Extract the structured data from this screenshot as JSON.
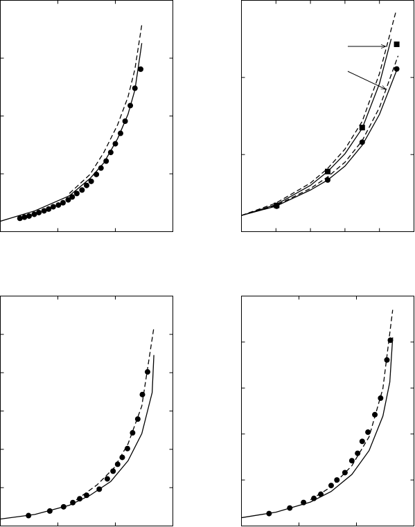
{
  "chart_data": [
    {
      "type": "line",
      "xlim": [
        0,
        3
      ],
      "ylim": [
        0,
        4
      ],
      "xticks": [
        1,
        2
      ],
      "yticks": [
        1,
        2,
        3
      ],
      "grid": false,
      "series": [
        {
          "style": "solid",
          "color": "#000000",
          "x": [
            0,
            0.6,
            1.2,
            1.56,
            1.8,
            2.04,
            2.22,
            2.34,
            2.46
          ],
          "values": [
            0.18,
            0.36,
            0.62,
            0.92,
            1.19,
            1.61,
            2.03,
            2.45,
            3.26
          ]
        },
        {
          "style": "dashed",
          "color": "#000000",
          "x": [
            1.2,
            1.56,
            1.8,
            2.04,
            2.22,
            2.34,
            2.46
          ],
          "values": [
            0.66,
            0.99,
            1.37,
            1.85,
            2.33,
            2.81,
            3.58
          ]
        },
        {
          "style": "markers",
          "marker": "circle",
          "color": "#000000",
          "x": [
            0.34,
            0.42,
            0.5,
            0.59,
            0.67,
            0.76,
            0.84,
            0.92,
            1.01,
            1.09,
            1.18,
            1.25,
            1.33,
            1.42,
            1.5,
            1.58,
            1.67,
            1.75,
            1.84,
            1.92,
            2.0,
            2.09,
            2.17,
            2.26,
            2.34,
            2.44
          ],
          "values": [
            0.23,
            0.25,
            0.27,
            0.3,
            0.33,
            0.36,
            0.39,
            0.43,
            0.46,
            0.5,
            0.55,
            0.6,
            0.66,
            0.72,
            0.8,
            0.87,
            0.99,
            1.1,
            1.22,
            1.37,
            1.52,
            1.7,
            1.91,
            2.18,
            2.48,
            2.81
          ]
        }
      ]
    },
    {
      "type": "line",
      "xlim": [
        0,
        5
      ],
      "ylim": [
        0,
        3
      ],
      "xticks": [
        1,
        2,
        3,
        4
      ],
      "yticks": [
        1,
        2
      ],
      "grid": false,
      "series": [
        {
          "style": "solid",
          "color": "#000000",
          "x": [
            0,
            1,
            2,
            2.5,
            3,
            3.5,
            4,
            4.34
          ],
          "values": [
            0.21,
            0.35,
            0.6,
            0.78,
            1.01,
            1.34,
            1.92,
            2.5
          ]
        },
        {
          "style": "dashed",
          "color": "#000000",
          "x": [
            0,
            1,
            2,
            2.5,
            3,
            3.5,
            4,
            4.48
          ],
          "values": [
            0.21,
            0.37,
            0.63,
            0.82,
            1.07,
            1.43,
            2.05,
            2.86
          ]
        },
        {
          "style": "solid",
          "color": "#000000",
          "x": [
            0,
            1,
            2,
            2.5,
            3,
            3.5,
            4,
            4.54
          ],
          "values": [
            0.21,
            0.33,
            0.54,
            0.67,
            0.85,
            1.12,
            1.52,
            2.14
          ]
        },
        {
          "style": "dashed",
          "color": "#000000",
          "x": [
            0,
            1,
            2,
            2.5,
            3,
            3.5,
            4,
            4.54
          ],
          "values": [
            0.21,
            0.34,
            0.56,
            0.71,
            0.9,
            1.18,
            1.61,
            2.28
          ]
        },
        {
          "style": "markers",
          "marker": "square",
          "color": "#000000",
          "x": [
            1.02,
            2.5,
            3.5,
            4.5
          ],
          "values": [
            0.34,
            0.78,
            1.35,
            2.43
          ]
        },
        {
          "style": "markers",
          "marker": "circle",
          "color": "#000000",
          "x": [
            1.02,
            2.5,
            3.5,
            4.5
          ],
          "values": [
            0.33,
            0.67,
            1.16,
            2.11
          ]
        }
      ]
    },
    {
      "type": "line",
      "xlim": [
        0,
        3
      ],
      "ylim": [
        0,
        6
      ],
      "xticks": [
        1,
        2
      ],
      "yticks": [
        1,
        2,
        3,
        4,
        5
      ],
      "grid": false,
      "series": [
        {
          "style": "solid",
          "color": "#000000",
          "x": [
            0,
            0.6,
            1.2,
            1.56,
            1.92,
            2.22,
            2.46,
            2.64,
            2.67
          ],
          "values": [
            0.18,
            0.3,
            0.54,
            0.8,
            1.16,
            1.7,
            2.41,
            3.48,
            4.46
          ]
        },
        {
          "style": "dashed",
          "color": "#000000",
          "x": [
            1.32,
            1.68,
            1.98,
            2.22,
            2.46,
            2.67
          ],
          "values": [
            0.68,
            1.07,
            1.52,
            2.14,
            3.13,
            5.18
          ]
        },
        {
          "style": "markers",
          "marker": "circle",
          "color": "#000000",
          "x": [
            0.49,
            0.86,
            1.1,
            1.26,
            1.38,
            1.5,
            1.72,
            1.86,
            1.96,
            2.04,
            2.12,
            2.21,
            2.3,
            2.39,
            2.47,
            2.56
          ],
          "values": [
            0.27,
            0.39,
            0.5,
            0.61,
            0.71,
            0.8,
            0.96,
            1.23,
            1.43,
            1.61,
            1.79,
            2.02,
            2.43,
            2.79,
            3.43,
            4.02
          ]
        }
      ]
    },
    {
      "type": "line",
      "xlim": [
        0,
        3
      ],
      "ylim": [
        0,
        5
      ],
      "xticks": [
        1,
        2
      ],
      "yticks": [
        1,
        2,
        3,
        4
      ],
      "grid": false,
      "series": [
        {
          "style": "solid",
          "color": "#000000",
          "x": [
            0,
            0.6,
            1.2,
            1.56,
            1.92,
            2.22,
            2.46,
            2.58,
            2.63
          ],
          "values": [
            0.18,
            0.3,
            0.52,
            0.75,
            1.12,
            1.64,
            2.39,
            3.13,
            4.1
          ]
        },
        {
          "style": "dashed",
          "color": "#000000",
          "x": [
            1.2,
            1.56,
            1.92,
            2.22,
            2.46,
            2.63
          ],
          "values": [
            0.57,
            0.85,
            1.31,
            1.94,
            2.99,
            4.7
          ]
        },
        {
          "style": "markers",
          "marker": "circle",
          "color": "#000000",
          "x": [
            0.48,
            0.84,
            1.08,
            1.26,
            1.38,
            1.56,
            1.66,
            1.8,
            1.92,
            2.02,
            2.1,
            2.2,
            2.32,
            2.42,
            2.53,
            2.59
          ],
          "values": [
            0.27,
            0.39,
            0.51,
            0.6,
            0.69,
            0.88,
            1.0,
            1.16,
            1.42,
            1.58,
            1.84,
            2.04,
            2.42,
            2.78,
            3.61,
            4.04
          ]
        }
      ]
    }
  ]
}
